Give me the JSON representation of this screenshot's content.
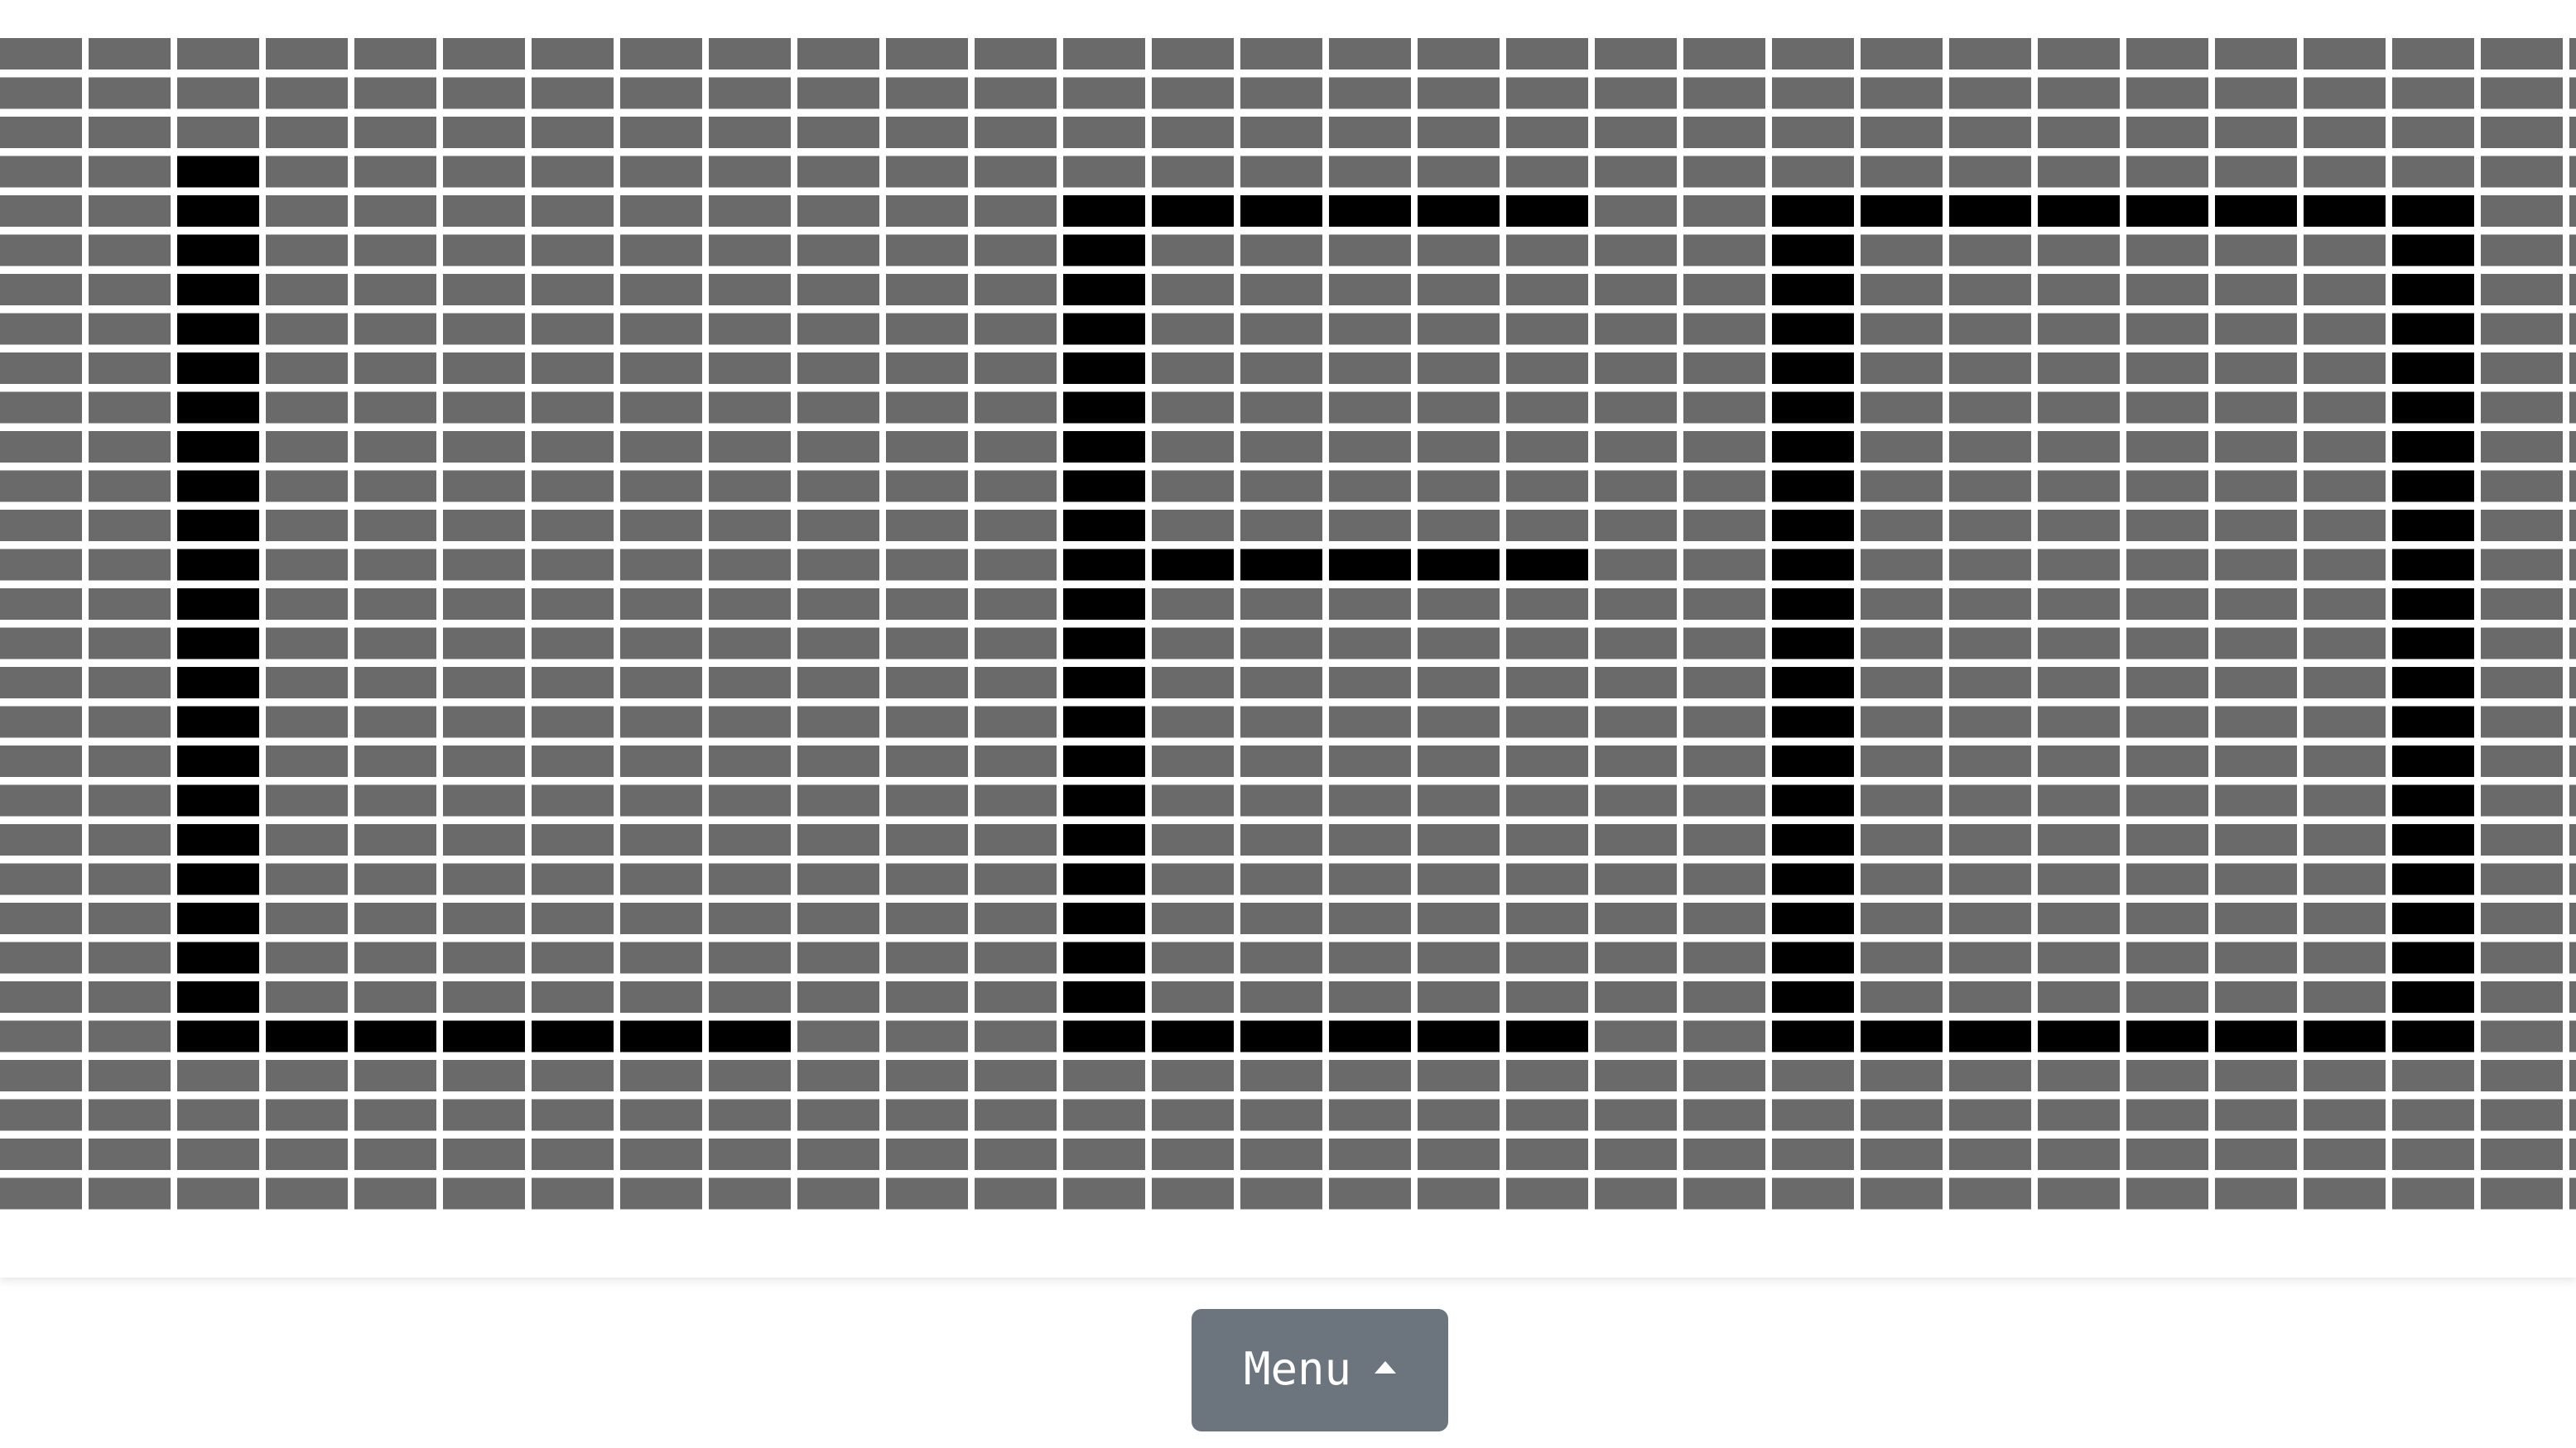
{
  "board": {
    "description_rows": 30,
    "description_cols": 30,
    "cell_colors": {
      "off": "#6a6a6a",
      "on": "#000000",
      "gap": "#ffffff"
    },
    "on_cells": [
      [
        3,
        2
      ],
      [
        4,
        2
      ],
      [
        5,
        2
      ],
      [
        6,
        2
      ],
      [
        7,
        2
      ],
      [
        8,
        2
      ],
      [
        9,
        2
      ],
      [
        10,
        2
      ],
      [
        11,
        2
      ],
      [
        12,
        2
      ],
      [
        13,
        2
      ],
      [
        14,
        2
      ],
      [
        15,
        2
      ],
      [
        16,
        2
      ],
      [
        17,
        2
      ],
      [
        18,
        2
      ],
      [
        19,
        2
      ],
      [
        20,
        2
      ],
      [
        21,
        2
      ],
      [
        22,
        2
      ],
      [
        23,
        2
      ],
      [
        24,
        2
      ],
      [
        25,
        2
      ],
      [
        25,
        3
      ],
      [
        25,
        4
      ],
      [
        25,
        5
      ],
      [
        25,
        6
      ],
      [
        25,
        7
      ],
      [
        25,
        8
      ],
      [
        4,
        12
      ],
      [
        5,
        12
      ],
      [
        6,
        12
      ],
      [
        7,
        12
      ],
      [
        8,
        12
      ],
      [
        9,
        12
      ],
      [
        10,
        12
      ],
      [
        11,
        12
      ],
      [
        12,
        12
      ],
      [
        13,
        12
      ],
      [
        14,
        12
      ],
      [
        15,
        12
      ],
      [
        16,
        12
      ],
      [
        17,
        12
      ],
      [
        18,
        12
      ],
      [
        19,
        12
      ],
      [
        20,
        12
      ],
      [
        21,
        12
      ],
      [
        22,
        12
      ],
      [
        23,
        12
      ],
      [
        24,
        12
      ],
      [
        25,
        12
      ],
      [
        4,
        13
      ],
      [
        4,
        14
      ],
      [
        4,
        15
      ],
      [
        4,
        16
      ],
      [
        4,
        17
      ],
      [
        13,
        13
      ],
      [
        13,
        14
      ],
      [
        13,
        15
      ],
      [
        13,
        16
      ],
      [
        13,
        17
      ],
      [
        25,
        13
      ],
      [
        25,
        14
      ],
      [
        25,
        15
      ],
      [
        25,
        16
      ],
      [
        25,
        17
      ],
      [
        4,
        20
      ],
      [
        5,
        20
      ],
      [
        6,
        20
      ],
      [
        7,
        20
      ],
      [
        8,
        20
      ],
      [
        9,
        20
      ],
      [
        10,
        20
      ],
      [
        11,
        20
      ],
      [
        12,
        20
      ],
      [
        13,
        20
      ],
      [
        14,
        20
      ],
      [
        15,
        20
      ],
      [
        16,
        20
      ],
      [
        17,
        20
      ],
      [
        18,
        20
      ],
      [
        19,
        20
      ],
      [
        20,
        20
      ],
      [
        21,
        20
      ],
      [
        22,
        20
      ],
      [
        23,
        20
      ],
      [
        24,
        20
      ],
      [
        25,
        20
      ],
      [
        4,
        21
      ],
      [
        4,
        22
      ],
      [
        4,
        23
      ],
      [
        4,
        24
      ],
      [
        4,
        25
      ],
      [
        4,
        26
      ],
      [
        4,
        27
      ],
      [
        25,
        21
      ],
      [
        25,
        22
      ],
      [
        25,
        23
      ],
      [
        25,
        24
      ],
      [
        25,
        25
      ],
      [
        25,
        26
      ],
      [
        25,
        27
      ],
      [
        4,
        27
      ],
      [
        5,
        27
      ],
      [
        6,
        27
      ],
      [
        7,
        27
      ],
      [
        8,
        27
      ],
      [
        9,
        27
      ],
      [
        10,
        27
      ],
      [
        11,
        27
      ],
      [
        12,
        27
      ],
      [
        13,
        27
      ],
      [
        14,
        27
      ],
      [
        15,
        27
      ],
      [
        16,
        27
      ],
      [
        17,
        27
      ],
      [
        18,
        27
      ],
      [
        19,
        27
      ],
      [
        20,
        27
      ],
      [
        21,
        27
      ],
      [
        22,
        27
      ],
      [
        23,
        27
      ],
      [
        24,
        27
      ],
      [
        25,
        27
      ]
    ]
  },
  "menu": {
    "label": "Menu",
    "icon": "caret-up-icon",
    "background": "#6c757d"
  }
}
